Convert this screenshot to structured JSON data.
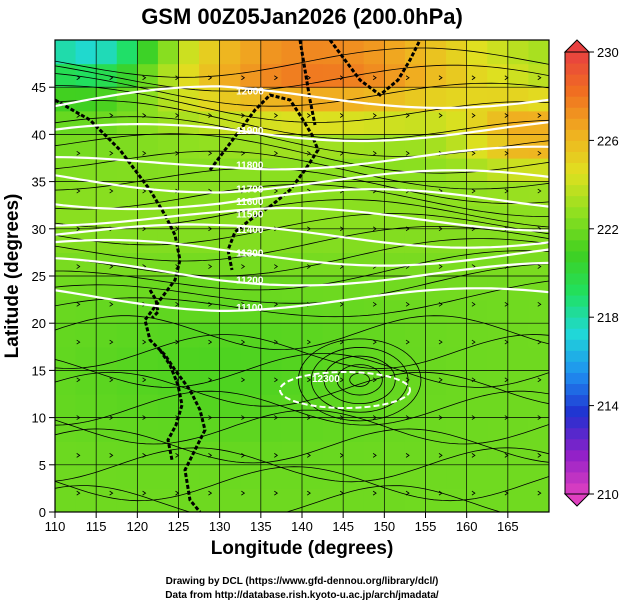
{
  "chart_data": {
    "type": "heatmap",
    "title": "GSM 00Z05Jan2026 (200.0hPa)",
    "xlabel": "Longitude (degrees)",
    "ylabel": "Latitude  (degrees)",
    "xlim": [
      110,
      170
    ],
    "ylim": [
      0,
      50
    ],
    "xticks": [
      110,
      115,
      120,
      125,
      130,
      135,
      140,
      145,
      150,
      155,
      160,
      165
    ],
    "yticks": [
      0,
      5,
      10,
      15,
      20,
      25,
      30,
      35,
      40,
      45
    ],
    "colorbar": {
      "min": 210,
      "max": 230,
      "ticks": [
        210,
        214,
        218,
        222,
        226,
        230
      ],
      "colors": [
        "#e040c0",
        "#9020c8",
        "#2030d0",
        "#1f8ff0",
        "#20d8d8",
        "#20e060",
        "#40d020",
        "#90e020",
        "#e0e020",
        "#f0b020",
        "#f07020",
        "#e84040"
      ]
    },
    "field_summary": {
      "high_region_north": 228,
      "low_region_northwest": 216,
      "tropics_mean": 222,
      "jet_band_mean": 223
    },
    "contour_labels": [
      "12000",
      "11900",
      "11800",
      "11700",
      "11600",
      "11500",
      "11400",
      "11300",
      "11200",
      "11100",
      "11000",
      "12300"
    ],
    "credits": [
      "Drawing by DCL (https://www.gfd-dennou.org/library/dcl/)",
      "Data from http://database.rish.kyoto-u.ac.jp/arch/jmadata/"
    ]
  }
}
